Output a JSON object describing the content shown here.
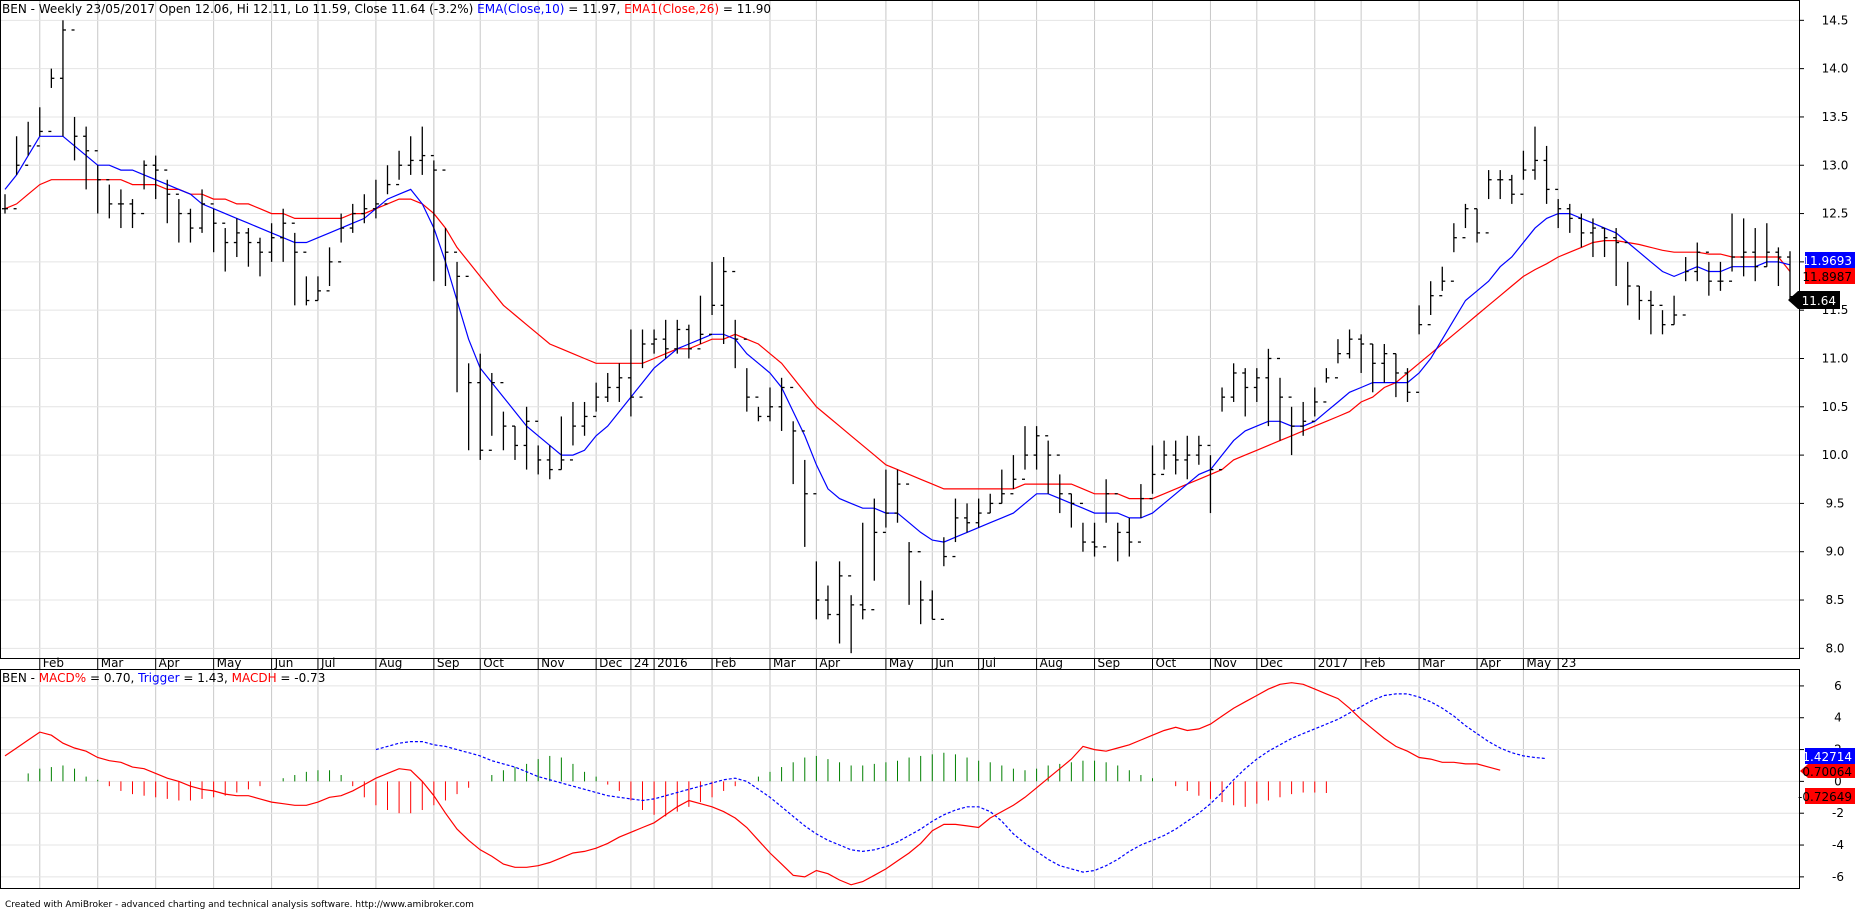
{
  "header": {
    "symbol": "BEN",
    "info": " - Weekly 23/05/2017 Open 12.06, Hi 12.11, Lo 11.59, Close 11.64 (-3.2%) ",
    "ema10_label": "EMA(Close,10)",
    "ema10_value": " = 11.97, ",
    "ema26_label": "EMA1(Close,26)",
    "ema26_value": " = 11.90"
  },
  "lower_header": {
    "symbol": "BEN",
    "sep": " - ",
    "macd_label": "MACD%",
    "macd_value": " = 0.70, ",
    "trigger_label": "Trigger",
    "trigger_value": " = 1.43, ",
    "macdh_label": "MACDH",
    "macdh_value": " = -0.73"
  },
  "footer": "Created with AmiBroker - advanced charting and technical analysis software. http://www.amibroker.com",
  "colors": {
    "ema10": "#0000ff",
    "ema26": "#ff0000",
    "bars": "#000000",
    "hist_pos": "#008000",
    "hist_neg": "#ff0000",
    "grid": "#c8c8c8"
  },
  "price_badges": {
    "ema10": "11.9693",
    "ema26": "11.8987",
    "close": "11.64"
  },
  "macd_badges": {
    "trigger": "1.42714",
    "macd": "0.70064",
    "macdh": "-0.72649"
  },
  "chart_data": [
    {
      "type": "ohlc",
      "name": "price",
      "ylim": [
        7.9,
        14.7
      ],
      "y_ticks": [
        "8.0",
        "8.5",
        "9.0",
        "9.5",
        "10.0",
        "10.5",
        "11.0",
        "11.5",
        "12.0",
        "12.5",
        "13.0",
        "13.5",
        "14.0",
        "14.5"
      ],
      "x_labels": [
        {
          "label": "Feb",
          "i": 3
        },
        {
          "label": "Mar",
          "i": 8
        },
        {
          "label": "Apr",
          "i": 13
        },
        {
          "label": "May",
          "i": 18
        },
        {
          "label": "Jun",
          "i": 23
        },
        {
          "label": "Jul",
          "i": 27
        },
        {
          "label": "Aug",
          "i": 32
        },
        {
          "label": "Sep",
          "i": 37
        },
        {
          "label": "Oct",
          "i": 41
        },
        {
          "label": "Nov",
          "i": 46
        },
        {
          "label": "Dec",
          "i": 51
        },
        {
          "label": "24",
          "i": 54
        },
        {
          "label": "2016",
          "i": 56
        },
        {
          "label": "Feb",
          "i": 61
        },
        {
          "label": "Mar",
          "i": 66
        },
        {
          "label": "Apr",
          "i": 70
        },
        {
          "label": "May",
          "i": 76
        },
        {
          "label": "Jun",
          "i": 80
        },
        {
          "label": "Jul",
          "i": 84
        },
        {
          "label": "Aug",
          "i": 89
        },
        {
          "label": "Sep",
          "i": 94
        },
        {
          "label": "Oct",
          "i": 99
        },
        {
          "label": "Nov",
          "i": 104
        },
        {
          "label": "Dec",
          "i": 108
        },
        {
          "label": "2017",
          "i": 113
        },
        {
          "label": "Feb",
          "i": 117
        },
        {
          "label": "Mar",
          "i": 122
        },
        {
          "label": "Apr",
          "i": 127
        },
        {
          "label": "May",
          "i": 131
        },
        {
          "label": "23",
          "i": 134
        }
      ],
      "close": [
        12.55,
        13.0,
        13.2,
        13.35,
        13.9,
        14.4,
        13.3,
        13.15,
        12.85,
        12.6,
        12.6,
        12.5,
        13.0,
        12.95,
        12.7,
        12.5,
        12.35,
        12.6,
        12.4,
        12.2,
        12.3,
        12.2,
        12.1,
        12.25,
        12.4,
        12.1,
        11.6,
        11.7,
        12.0,
        12.35,
        12.5,
        12.55,
        12.6,
        12.8,
        13.0,
        13.05,
        13.1,
        12.95,
        12.1,
        11.85,
        10.75,
        10.05,
        10.75,
        10.3,
        10.1,
        10.35,
        9.95,
        9.85,
        9.95,
        10.3,
        10.4,
        10.6,
        10.7,
        10.8,
        10.6,
        11.15,
        11.2,
        11.1,
        11.3,
        11.1,
        11.25,
        11.55,
        11.9,
        11.2,
        10.6,
        10.4,
        10.5,
        10.7,
        10.25,
        9.6,
        8.5,
        8.35,
        8.75,
        8.45,
        8.4,
        9.2,
        9.4,
        9.7,
        9.0,
        8.5,
        8.3,
        8.95,
        9.35,
        9.3,
        9.4,
        9.5,
        9.6,
        9.75,
        10.0,
        10.2,
        10.0,
        9.6,
        9.5,
        9.1,
        9.05,
        9.6,
        9.2,
        9.1,
        9.55,
        9.8,
        10.0,
        9.95,
        10.0,
        10.1,
        9.85,
        10.6,
        10.85,
        10.7,
        10.8,
        11.0,
        10.6,
        10.3,
        10.35,
        10.55,
        10.8,
        11.05,
        11.2,
        11.15,
        10.95,
        11.05,
        10.85,
        10.65,
        11.35,
        11.65,
        11.8,
        12.25,
        12.55,
        12.3,
        12.85,
        12.85,
        12.7,
        12.95,
        13.05,
        12.75,
        12.55,
        12.45,
        12.3,
        12.35,
        12.25,
        12.2,
        11.75,
        11.6,
        11.55,
        11.35,
        11.45,
        11.9,
        12.1,
        11.8,
        11.8,
        12.05,
        12.1,
        11.95,
        12.1,
        12.05,
        11.64
      ],
      "high": [
        12.7,
        13.3,
        13.45,
        13.6,
        14.0,
        14.5,
        13.5,
        13.4,
        13.0,
        12.8,
        12.75,
        12.65,
        13.05,
        13.1,
        12.85,
        12.65,
        12.55,
        12.75,
        12.55,
        12.35,
        12.45,
        12.35,
        12.25,
        12.4,
        12.55,
        12.3,
        11.85,
        11.85,
        12.15,
        12.5,
        12.6,
        12.7,
        12.85,
        13.0,
        13.15,
        13.3,
        13.4,
        13.05,
        12.35,
        12.0,
        10.95,
        11.05,
        10.85,
        10.45,
        10.3,
        10.5,
        10.1,
        10.1,
        10.4,
        10.55,
        10.55,
        10.75,
        10.85,
        10.95,
        11.3,
        11.3,
        11.3,
        11.4,
        11.4,
        11.35,
        11.65,
        12.0,
        12.05,
        11.4,
        10.9,
        10.5,
        10.7,
        10.8,
        10.35,
        9.95,
        8.9,
        8.65,
        8.9,
        8.55,
        9.3,
        9.55,
        9.85,
        9.85,
        9.1,
        8.7,
        8.6,
        9.15,
        9.55,
        9.5,
        9.55,
        9.6,
        9.85,
        10.0,
        10.3,
        10.3,
        10.15,
        9.8,
        9.6,
        9.3,
        9.3,
        9.75,
        9.3,
        9.35,
        9.7,
        10.1,
        10.15,
        10.15,
        10.2,
        10.2,
        10.0,
        10.7,
        10.95,
        10.9,
        10.9,
        11.1,
        10.8,
        10.5,
        10.55,
        10.7,
        10.9,
        11.2,
        11.3,
        11.25,
        11.15,
        11.15,
        11.05,
        10.9,
        11.55,
        11.8,
        11.95,
        12.4,
        12.6,
        12.55,
        12.95,
        12.95,
        12.9,
        13.15,
        13.4,
        13.2,
        12.65,
        12.6,
        12.5,
        12.45,
        12.35,
        12.35,
        12.0,
        11.75,
        11.7,
        11.5,
        11.65,
        12.05,
        12.2,
        12.0,
        12.0,
        12.5,
        12.45,
        12.35,
        12.4,
        12.15,
        12.11
      ],
      "low": [
        12.5,
        12.9,
        13.1,
        13.3,
        13.8,
        13.3,
        13.05,
        12.75,
        12.5,
        12.45,
        12.35,
        12.35,
        12.75,
        12.65,
        12.4,
        12.2,
        12.2,
        12.3,
        12.1,
        11.9,
        12.05,
        11.95,
        11.85,
        12.0,
        12.0,
        11.55,
        11.55,
        11.6,
        11.75,
        12.2,
        12.3,
        12.4,
        12.45,
        12.7,
        12.85,
        12.9,
        12.9,
        11.8,
        11.75,
        10.65,
        10.05,
        9.95,
        10.2,
        10.05,
        9.95,
        9.85,
        9.8,
        9.75,
        9.85,
        10.1,
        10.2,
        10.45,
        10.55,
        10.55,
        10.4,
        10.9,
        11.05,
        11.0,
        11.05,
        11.0,
        11.15,
        11.45,
        11.15,
        10.9,
        10.45,
        10.35,
        10.35,
        10.25,
        9.7,
        9.05,
        8.3,
        8.3,
        8.05,
        7.95,
        8.3,
        8.7,
        9.25,
        9.3,
        8.45,
        8.25,
        8.3,
        8.85,
        9.1,
        9.2,
        9.25,
        9.4,
        9.5,
        9.65,
        9.85,
        9.85,
        9.6,
        9.4,
        9.25,
        9.0,
        8.95,
        9.3,
        8.9,
        8.95,
        9.35,
        9.6,
        9.85,
        9.8,
        9.75,
        9.9,
        9.4,
        10.45,
        10.55,
        10.4,
        10.55,
        10.3,
        10.15,
        10.0,
        10.2,
        10.4,
        10.75,
        10.95,
        11.0,
        10.85,
        10.65,
        10.75,
        10.6,
        10.55,
        11.25,
        11.45,
        11.7,
        12.1,
        12.35,
        12.2,
        12.65,
        12.65,
        12.6,
        12.85,
        12.85,
        12.6,
        12.35,
        12.3,
        12.15,
        12.05,
        12.05,
        11.75,
        11.55,
        11.4,
        11.25,
        11.25,
        11.35,
        11.8,
        11.8,
        11.65,
        11.7,
        11.9,
        11.85,
        11.8,
        11.95,
        11.75,
        11.59
      ],
      "ema10": [
        12.75,
        12.9,
        13.1,
        13.3,
        13.3,
        13.3,
        13.2,
        13.1,
        13.0,
        13.0,
        12.95,
        12.95,
        12.9,
        12.85,
        12.8,
        12.75,
        12.7,
        12.6,
        12.55,
        12.5,
        12.45,
        12.4,
        12.35,
        12.3,
        12.25,
        12.2,
        12.2,
        12.25,
        12.3,
        12.35,
        12.4,
        12.45,
        12.55,
        12.65,
        12.7,
        12.75,
        12.6,
        12.35,
        12.0,
        11.6,
        11.2,
        10.9,
        10.75,
        10.6,
        10.45,
        10.3,
        10.2,
        10.1,
        10.0,
        10.0,
        10.05,
        10.2,
        10.3,
        10.45,
        10.6,
        10.75,
        10.9,
        11.0,
        11.1,
        11.15,
        11.2,
        11.25,
        11.25,
        11.2,
        11.05,
        10.95,
        10.85,
        10.7,
        10.45,
        10.2,
        9.9,
        9.65,
        9.55,
        9.5,
        9.45,
        9.45,
        9.4,
        9.4,
        9.3,
        9.2,
        9.12,
        9.1,
        9.15,
        9.2,
        9.25,
        9.3,
        9.35,
        9.4,
        9.5,
        9.6,
        9.6,
        9.55,
        9.5,
        9.45,
        9.4,
        9.4,
        9.4,
        9.35,
        9.35,
        9.4,
        9.5,
        9.6,
        9.7,
        9.8,
        9.85,
        10.0,
        10.15,
        10.25,
        10.3,
        10.35,
        10.35,
        10.3,
        10.3,
        10.35,
        10.45,
        10.55,
        10.65,
        10.7,
        10.75,
        10.75,
        10.75,
        10.75,
        10.85,
        11.0,
        11.2,
        11.4,
        11.6,
        11.7,
        11.8,
        11.95,
        12.05,
        12.2,
        12.35,
        12.45,
        12.5,
        12.5,
        12.45,
        12.4,
        12.35,
        12.3,
        12.2,
        12.1,
        12.0,
        11.9,
        11.85,
        11.9,
        11.95,
        11.9,
        11.9,
        11.95,
        11.95,
        11.95,
        12.0,
        12.0,
        11.97
      ],
      "ema26": [
        12.55,
        12.6,
        12.7,
        12.8,
        12.85,
        12.85,
        12.85,
        12.85,
        12.85,
        12.85,
        12.85,
        12.8,
        12.8,
        12.8,
        12.75,
        12.75,
        12.7,
        12.7,
        12.65,
        12.65,
        12.6,
        12.6,
        12.55,
        12.5,
        12.5,
        12.45,
        12.45,
        12.45,
        12.45,
        12.45,
        12.5,
        12.5,
        12.55,
        12.6,
        12.65,
        12.65,
        12.6,
        12.5,
        12.35,
        12.15,
        12.0,
        11.85,
        11.7,
        11.55,
        11.45,
        11.35,
        11.25,
        11.15,
        11.1,
        11.05,
        11.0,
        10.95,
        10.95,
        10.95,
        10.95,
        10.95,
        11.0,
        11.05,
        11.1,
        11.1,
        11.15,
        11.2,
        11.2,
        11.25,
        11.2,
        11.15,
        11.05,
        10.95,
        10.8,
        10.65,
        10.5,
        10.4,
        10.3,
        10.2,
        10.1,
        10.0,
        9.9,
        9.85,
        9.8,
        9.75,
        9.7,
        9.65,
        9.65,
        9.65,
        9.65,
        9.65,
        9.65,
        9.65,
        9.7,
        9.7,
        9.7,
        9.7,
        9.7,
        9.65,
        9.6,
        9.6,
        9.6,
        9.55,
        9.55,
        9.55,
        9.6,
        9.65,
        9.7,
        9.75,
        9.8,
        9.85,
        9.95,
        10.0,
        10.05,
        10.1,
        10.15,
        10.2,
        10.25,
        10.3,
        10.35,
        10.4,
        10.45,
        10.55,
        10.6,
        10.7,
        10.75,
        10.85,
        10.95,
        11.05,
        11.15,
        11.25,
        11.35,
        11.45,
        11.55,
        11.65,
        11.75,
        11.85,
        11.92,
        11.98,
        12.05,
        12.1,
        12.15,
        12.2,
        12.22,
        12.22,
        12.2,
        12.18,
        12.15,
        12.12,
        12.1,
        12.1,
        12.1,
        12.08,
        12.08,
        12.05,
        12.05,
        12.05,
        12.05,
        12.05,
        11.9
      ]
    },
    {
      "type": "line",
      "name": "macd",
      "ylim": [
        -6.7,
        7.0
      ],
      "y_ticks": [
        "-6",
        "-4",
        "-2",
        "0",
        "2",
        "4",
        "6"
      ],
      "macd": [
        1.6,
        2.1,
        2.6,
        3.1,
        2.9,
        2.4,
        2.1,
        1.9,
        1.5,
        1.3,
        1.2,
        0.9,
        0.8,
        0.5,
        0.2,
        0.0,
        -0.3,
        -0.5,
        -0.6,
        -0.8,
        -0.9,
        -0.9,
        -1.1,
        -1.3,
        -1.4,
        -1.5,
        -1.5,
        -1.3,
        -1.0,
        -0.9,
        -0.6,
        -0.2,
        0.2,
        0.5,
        0.8,
        0.7,
        0.0,
        -0.9,
        -2.0,
        -3.0,
        -3.7,
        -4.3,
        -4.7,
        -5.2,
        -5.4,
        -5.4,
        -5.3,
        -5.1,
        -4.8,
        -4.5,
        -4.4,
        -4.2,
        -3.9,
        -3.5,
        -3.2,
        -2.9,
        -2.6,
        -2.1,
        -1.6,
        -1.2,
        -1.4,
        -1.6,
        -1.9,
        -2.3,
        -2.9,
        -3.7,
        -4.5,
        -5.2,
        -5.9,
        -6.0,
        -5.6,
        -5.8,
        -6.2,
        -6.5,
        -6.3,
        -5.9,
        -5.5,
        -5.0,
        -4.5,
        -3.9,
        -3.1,
        -2.7,
        -2.7,
        -2.8,
        -2.9,
        -2.3,
        -1.9,
        -1.5,
        -1.0,
        -0.4,
        0.2,
        0.8,
        1.4,
        2.2,
        2.0,
        1.9,
        2.1,
        2.3,
        2.6,
        2.9,
        3.2,
        3.4,
        3.2,
        3.3,
        3.6,
        4.1,
        4.6,
        5.0,
        5.4,
        5.8,
        6.1,
        6.2,
        6.1,
        5.8,
        5.5,
        5.2,
        4.6,
        3.9,
        3.3,
        2.7,
        2.2,
        1.9,
        1.5,
        1.4,
        1.2,
        1.2,
        1.1,
        1.1,
        0.9,
        0.7
      ],
      "trigger": [
        2.0,
        2.2,
        2.4,
        2.5,
        2.5,
        2.3,
        2.2,
        2.0,
        1.8,
        1.6,
        1.3,
        1.1,
        0.9,
        0.6,
        0.3,
        0.1,
        -0.1,
        -0.3,
        -0.5,
        -0.7,
        -0.9,
        -1.0,
        -1.1,
        -1.2,
        -1.1,
        -0.9,
        -0.7,
        -0.5,
        -0.3,
        -0.1,
        0.1,
        0.2,
        0.0,
        -0.5,
        -1.0,
        -1.6,
        -2.2,
        -2.8,
        -3.3,
        -3.7,
        -4.0,
        -4.3,
        -4.4,
        -4.3,
        -4.1,
        -3.8,
        -3.4,
        -3.0,
        -2.5,
        -2.1,
        -1.8,
        -1.6,
        -1.6,
        -1.9,
        -2.5,
        -3.3,
        -3.9,
        -4.4,
        -4.9,
        -5.3,
        -5.5,
        -5.7,
        -5.6,
        -5.3,
        -4.9,
        -4.4,
        -4.0,
        -3.7,
        -3.4,
        -3.0,
        -2.5,
        -2.0,
        -1.4,
        -0.7,
        0.1,
        0.8,
        1.4,
        1.9,
        2.3,
        2.7,
        3.0,
        3.3,
        3.6,
        3.9,
        4.3,
        4.7,
        5.1,
        5.4,
        5.5,
        5.5,
        5.3,
        5.0,
        4.6,
        4.1,
        3.5,
        3.0,
        2.5,
        2.1,
        1.8,
        1.6,
        1.5,
        1.43
      ],
      "trigger_start": 32,
      "hist": [
        0.5,
        0.8,
        0.9,
        1.0,
        0.8,
        0.3,
        0.1,
        -0.3,
        -0.6,
        -0.8,
        -0.9,
        -1.0,
        -1.1,
        -1.2,
        -1.2,
        -1.1,
        -1.0,
        -0.9,
        -0.7,
        -0.5,
        -0.3,
        0.0,
        0.2,
        0.4,
        0.6,
        0.7,
        0.7,
        0.4,
        -0.3,
        -1.0,
        -1.5,
        -1.8,
        -2.0,
        -2.0,
        -1.8,
        -1.5,
        -1.2,
        -0.8,
        -0.4,
        0.0,
        0.4,
        0.7,
        0.9,
        1.1,
        1.4,
        1.6,
        1.5,
        1.1,
        0.6,
        0.3,
        -0.2,
        -0.6,
        -1.2,
        -1.8,
        -2.1,
        -2.2,
        -1.9,
        -1.6,
        -1.3,
        -1.0,
        -0.6,
        -0.3,
        0.0,
        0.3,
        0.6,
        0.9,
        1.2,
        1.5,
        1.6,
        1.4,
        1.2,
        1.0,
        1.0,
        1.1,
        1.2,
        1.3,
        1.5,
        1.6,
        1.7,
        1.8,
        1.7,
        1.5,
        1.3,
        1.2,
        1.0,
        0.8,
        0.7,
        0.8,
        1.0,
        1.1,
        1.2,
        1.3,
        1.3,
        1.2,
        1.0,
        0.7,
        0.4,
        0.2,
        0.0,
        -0.3,
        -0.6,
        -0.9,
        -1.1,
        -1.3,
        -1.5,
        -1.6,
        -1.4,
        -1.2,
        -1.0,
        -0.8,
        -0.7,
        -0.7,
        -0.73
      ],
      "hist_start": 2
    }
  ]
}
